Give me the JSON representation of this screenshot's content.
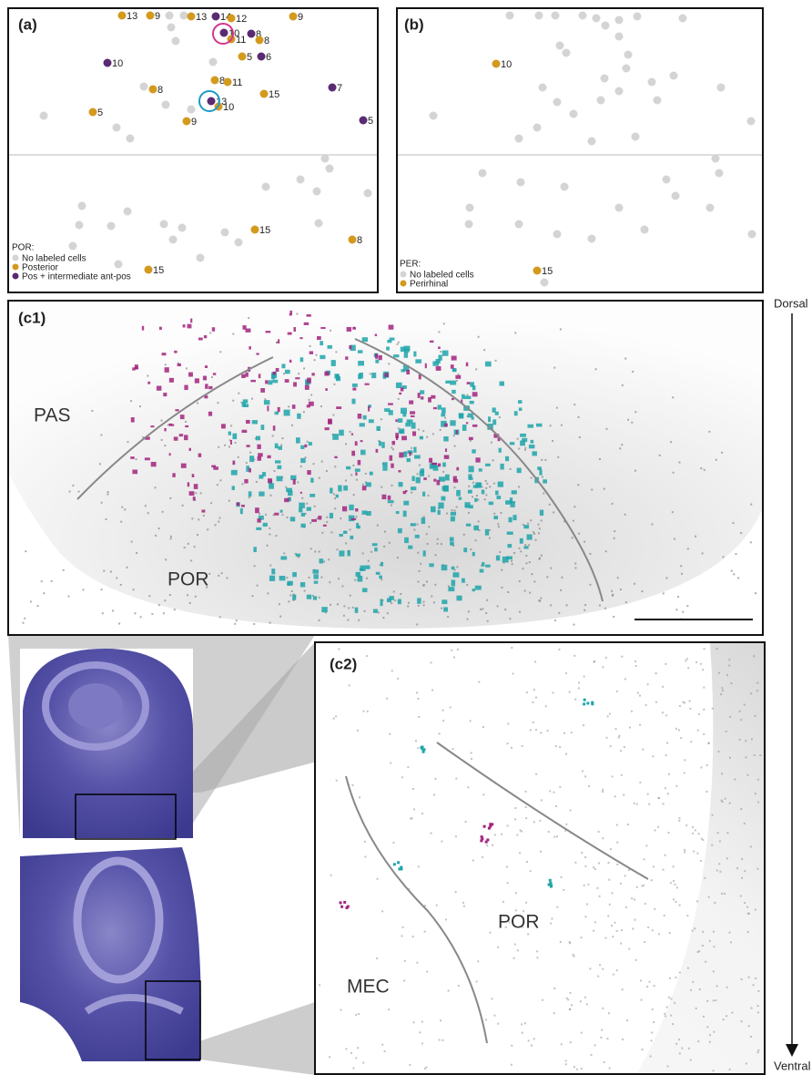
{
  "panels": {
    "a": {
      "label": "(a)",
      "legend": {
        "title": "POR:",
        "items": [
          "No labeled cells",
          "Posterior",
          "Pos + intermediate ant-pos"
        ]
      },
      "colors": [
        "#d4d4d4",
        "#d49a1e",
        "#5a2a72"
      ],
      "dots": [
        {
          "label": "13",
          "group": 1
        },
        {
          "label": "9",
          "group": 1
        },
        {
          "label": "13",
          "group": 1
        },
        {
          "label": "14",
          "group": 2
        },
        {
          "label": "12",
          "group": 1
        },
        {
          "label": "9",
          "group": 1
        },
        {
          "label": "10",
          "group": 2
        },
        {
          "label": "11",
          "group": 1
        },
        {
          "label": "8",
          "group": 2
        },
        {
          "label": "8",
          "group": 1
        },
        {
          "label": "5",
          "group": 1
        },
        {
          "label": "6",
          "group": 2
        },
        {
          "label": "10",
          "group": 2
        },
        {
          "label": "8",
          "group": 1
        },
        {
          "label": "11",
          "group": 1
        },
        {
          "label": "8",
          "group": 1
        },
        {
          "label": "15",
          "group": 1
        },
        {
          "label": "7",
          "group": 2
        },
        {
          "label": "13",
          "group": 2
        },
        {
          "label": "10",
          "group": 1
        },
        {
          "label": "5",
          "group": 1
        },
        {
          "label": "9",
          "group": 1
        },
        {
          "label": "5",
          "group": 2
        },
        {
          "label": "15",
          "group": 1
        },
        {
          "label": "8",
          "group": 1
        },
        {
          "label": "15",
          "group": 1
        }
      ]
    },
    "b": {
      "label": "(b)",
      "legend": {
        "title": "PER:",
        "items": [
          "No labeled cells",
          "Perirhinal"
        ]
      },
      "colors": [
        "#d4d4d4",
        "#d49a1e"
      ],
      "dots": [
        {
          "label": "10",
          "group": 1
        },
        {
          "label": "15",
          "group": 1
        }
      ]
    },
    "c1": {
      "label": "(c1)",
      "regions": [
        "PAS",
        "POR"
      ]
    },
    "c2": {
      "label": "(c2)",
      "regions": [
        "POR",
        "MEC"
      ]
    }
  },
  "axis": {
    "top": "Dorsal",
    "bottom": "Ventral"
  }
}
